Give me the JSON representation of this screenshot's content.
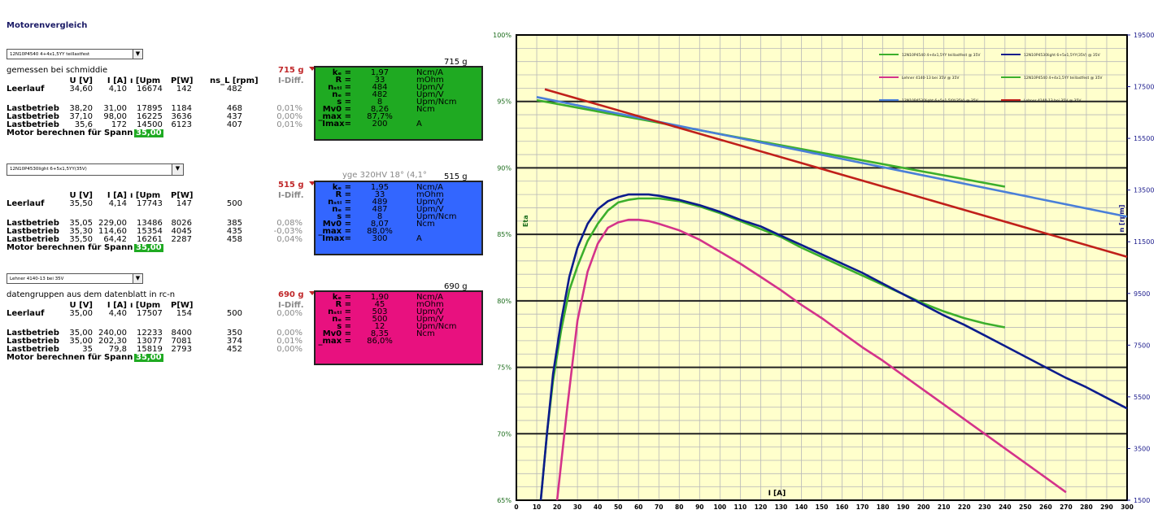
{
  "page_title": "Motorenvergleich",
  "motors": [
    {
      "dropdown": "12N10P4540 4+4x1,5YY teillastfest",
      "weight_top": "715 g",
      "note": "gemessen bei schmiddie",
      "weight_red": "715 g",
      "idiff_label": "I-Diff.",
      "header": {
        "u": "U [V]",
        "i": "I [A]",
        "n": "ı [Upm",
        "p": "P[W]",
        "nsl": "ns_L [rpm]"
      },
      "leer": {
        "label": "Leerlauf",
        "u": "34,60",
        "i": "4,10",
        "n": "16674",
        "p": "142",
        "nsl": "482",
        "diff": ""
      },
      "last": [
        {
          "label": "Lastbetrieb",
          "u": "38,20",
          "i": "31,00",
          "n": "17895",
          "p": "1184",
          "nsl": "468",
          "diff": "0,01%"
        },
        {
          "label": "Lastbetrieb",
          "u": "37,10",
          "i": "98,00",
          "n": "16225",
          "p": "3636",
          "nsl": "437",
          "diff": "0,00%"
        },
        {
          "label": "Lastbetrieb",
          "u": "35,6",
          "i": "172",
          "n": "14500",
          "p": "6123",
          "nsl": "407",
          "diff": "0,01%"
        }
      ],
      "berechnen": "Motor berechnen für Spann",
      "spann": "35,00",
      "box_color": "#1faa22",
      "params": [
        {
          "k": "kₑ =",
          "v": "1,97",
          "u": "Ncm/A"
        },
        {
          "k": "R =",
          "v": "33",
          "u": "mOhm"
        },
        {
          "k": "nₛₜₗ =",
          "v": "484",
          "u": "Upm/V"
        },
        {
          "k": "nₑ =",
          "v": "482",
          "u": "Upm/V"
        },
        {
          "k": "s =",
          "v": "8",
          "u": "Upm/Ncm"
        },
        {
          "k": "Mv0 =",
          "v": "8,26",
          "u": "Ncm"
        },
        {
          "k": "_max =",
          "v": "87,7%",
          "u": ""
        },
        {
          "k": "Imax=",
          "v": "200",
          "u": "A"
        }
      ]
    },
    {
      "dropdown": "12N10P4530light 6+5x1,5YY(35V)",
      "weight_top": "515 g",
      "extra_note": "yge 320HV 18° (4,1°",
      "weight_red": "515 g",
      "idiff_label": "I-Diff.",
      "header": {
        "u": "U [V]",
        "i": "I [A]",
        "n": "ı [Upm",
        "p": "P[W]",
        "nsl": ""
      },
      "leer": {
        "label": "Leerlauf",
        "u": "35,50",
        "i": "4,14",
        "n": "17743",
        "p": "147",
        "nsl": "500",
        "diff": ""
      },
      "last": [
        {
          "label": "Lastbetrieb",
          "u": "35,05",
          "i": "229,00",
          "n": "13486",
          "p": "8026",
          "nsl": "385",
          "diff": "0,08%"
        },
        {
          "label": "Lastbetrieb",
          "u": "35,30",
          "i": "114,60",
          "n": "15354",
          "p": "4045",
          "nsl": "435",
          "diff": "-0,03%"
        },
        {
          "label": "Lastbetrieb",
          "u": "35,50",
          "i": "64,42",
          "n": "16261",
          "p": "2287",
          "nsl": "458",
          "diff": "0,04%"
        }
      ],
      "berechnen": "Motor berechnen für Spann",
      "spann": "35,00",
      "box_color": "#3366ff",
      "params": [
        {
          "k": "kₑ =",
          "v": "1,95",
          "u": "Ncm/A"
        },
        {
          "k": "R =",
          "v": "33",
          "u": "mOhm"
        },
        {
          "k": "nₛₜₗ =",
          "v": "489",
          "u": "Upm/V"
        },
        {
          "k": "nₑ =",
          "v": "487",
          "u": "Upm/V"
        },
        {
          "k": "s =",
          "v": "8",
          "u": "Upm/Ncm"
        },
        {
          "k": "Mv0 =",
          "v": "8,07",
          "u": "Ncm"
        },
        {
          "k": "_max =",
          "v": "88,0%",
          "u": ""
        },
        {
          "k": "Imax=",
          "v": "300",
          "u": "A"
        }
      ]
    },
    {
      "dropdown": "Lehner 4140-13 bei 35V",
      "weight_top": "690 g",
      "note": "datengruppen aus dem datenblatt in rc-n",
      "weight_red": "690 g",
      "idiff_label": "I-Diff.",
      "header": {
        "u": "U [V]",
        "i": "I [A]",
        "n": "ı [Upm",
        "p": "P[W]",
        "nsl": ""
      },
      "leer": {
        "label": "Leerlauf",
        "u": "35,00",
        "i": "4,40",
        "n": "17507",
        "p": "154",
        "nsl": "500",
        "diff": "0,00%"
      },
      "last": [
        {
          "label": "Lastbetrieb",
          "u": "35,00",
          "i": "240,00",
          "n": "12233",
          "p": "8400",
          "nsl": "350",
          "diff": "0,00%"
        },
        {
          "label": "Lastbetrieb",
          "u": "35,00",
          "i": "202,30",
          "n": "13077",
          "p": "7081",
          "nsl": "374",
          "diff": "0,01%"
        },
        {
          "label": "Lastbetrieb",
          "u": "35",
          "i": "79,8",
          "n": "15819",
          "p": "2793",
          "nsl": "452",
          "diff": "0,00%"
        }
      ],
      "berechnen": "Motor berechnen für Spann",
      "spann": "35,00",
      "box_color": "#e8117f",
      "params": [
        {
          "k": "kₑ =",
          "v": "1,90",
          "u": "Ncm/A"
        },
        {
          "k": "R =",
          "v": "45",
          "u": "mOhm"
        },
        {
          "k": "nₛₜₗ =",
          "v": "503",
          "u": "Upm/V"
        },
        {
          "k": "nₑ =",
          "v": "500",
          "u": "Upm/V"
        },
        {
          "k": "s =",
          "v": "12",
          "u": "Upm/Ncm"
        },
        {
          "k": "Mv0 =",
          "v": "8,35",
          "u": "Ncm"
        },
        {
          "k": "_max =",
          "v": "86,0%",
          "u": ""
        }
      ]
    }
  ],
  "chart_data": {
    "type": "line",
    "title": "",
    "xlabel": "I [A]",
    "ylabel": "Eta",
    "y2label": "n [rpm]",
    "xlim": [
      0,
      300
    ],
    "xticks": [
      0,
      10,
      20,
      30,
      40,
      50,
      60,
      70,
      80,
      90,
      100,
      110,
      120,
      130,
      140,
      150,
      160,
      170,
      180,
      190,
      200,
      210,
      220,
      230,
      240,
      250,
      260,
      270,
      280,
      290,
      300
    ],
    "ylim": [
      65,
      100
    ],
    "yticks": [
      65,
      70,
      75,
      80,
      85,
      90,
      95,
      100
    ],
    "ytick_labels": [
      "65%",
      "70%",
      "75%",
      "80%",
      "85%",
      "90%",
      "95%",
      "100%"
    ],
    "y2lim": [
      1500,
      19500
    ],
    "y2ticks": [
      1500,
      3500,
      5500,
      7500,
      9500,
      11500,
      13500,
      15500,
      17500,
      19500
    ],
    "plot_background": "#ffffcc",
    "legend_position": "top-right",
    "legend": [
      {
        "name": "12N10P4540 4+4x1,5YY teillastfest @ 35V",
        "color": "#3caf2c"
      },
      {
        "name": "12N10P4530light 6+5x1,5YY(35V) @ 35V",
        "color": "#0c1c8c"
      },
      {
        "name": "Lehner 4140-13 bei 35V @ 35V",
        "color": "#d4338a"
      },
      {
        "name": "12N10P4540 4+4x1,5YY teillastfest @ 35V",
        "color": "#3caf2c"
      },
      {
        "name": "12N10P4530light 6+5x1,5YY(35V) @ 35V",
        "color": "#4a7fd8"
      },
      {
        "name": "Lehner 4140-13 bei 35V @ 35V",
        "color": "#c0201a"
      }
    ],
    "series": [
      {
        "axis": "y",
        "color": "#3caf2c",
        "x": [
          12,
          15,
          18,
          22,
          26,
          30,
          35,
          40,
          45,
          50,
          55,
          60,
          65,
          70,
          80,
          90,
          100,
          110,
          120,
          130,
          140,
          150,
          160,
          170,
          180,
          190,
          200,
          210,
          220,
          230,
          240
        ],
        "y": [
          65,
          70,
          74,
          77.8,
          80.8,
          82.6,
          84.5,
          85.8,
          86.8,
          87.4,
          87.6,
          87.7,
          87.7,
          87.7,
          87.5,
          87.1,
          86.6,
          86.0,
          85.4,
          84.8,
          84.0,
          83.3,
          82.6,
          81.9,
          81.2,
          80.5,
          79.8,
          79.2,
          78.7,
          78.3,
          78.0
        ]
      },
      {
        "axis": "y",
        "color": "#0c1c8c",
        "x": [
          12,
          15,
          18,
          22,
          26,
          30,
          35,
          40,
          45,
          50,
          55,
          60,
          65,
          70,
          80,
          90,
          100,
          110,
          120,
          130,
          140,
          150,
          160,
          170,
          180,
          190,
          200,
          210,
          220,
          230,
          240,
          250,
          260,
          270,
          280,
          290,
          300
        ],
        "y": [
          65,
          70,
          74.5,
          78.5,
          81.8,
          84,
          85.8,
          86.9,
          87.5,
          87.8,
          88.0,
          88.0,
          88.0,
          87.9,
          87.6,
          87.2,
          86.7,
          86.1,
          85.6,
          84.9,
          84.2,
          83.5,
          82.8,
          82.1,
          81.3,
          80.5,
          79.7,
          78.9,
          78.2,
          77.4,
          76.6,
          75.8,
          75.0,
          74.2,
          73.5,
          72.7,
          71.9
        ]
      },
      {
        "axis": "y",
        "color": "#d4338a",
        "x": [
          20,
          25,
          30,
          35,
          40,
          45,
          50,
          55,
          60,
          65,
          70,
          80,
          90,
          100,
          110,
          120,
          130,
          140,
          150,
          160,
          170,
          180,
          190,
          200,
          210,
          220,
          230,
          240,
          250,
          260,
          270
        ],
        "y": [
          65,
          72,
          78.5,
          82.2,
          84.3,
          85.5,
          85.9,
          86.1,
          86.1,
          86.0,
          85.8,
          85.3,
          84.6,
          83.7,
          82.8,
          81.8,
          80.8,
          79.7,
          78.7,
          77.6,
          76.5,
          75.5,
          74.4,
          73.3,
          72.2,
          71.1,
          70.0,
          68.9,
          67.8,
          66.7,
          65.6
        ]
      },
      {
        "axis": "y2",
        "color": "#3caf2c",
        "x": [
          10,
          240
        ],
        "y": [
          16980,
          13630
        ]
      },
      {
        "axis": "y2",
        "color": "#4a7fd8",
        "x": [
          10,
          300
        ],
        "y": [
          17100,
          12470
        ]
      },
      {
        "axis": "y2",
        "color": "#c0201a",
        "x": [
          14,
          300
        ],
        "y": [
          17400,
          10920
        ]
      }
    ]
  }
}
